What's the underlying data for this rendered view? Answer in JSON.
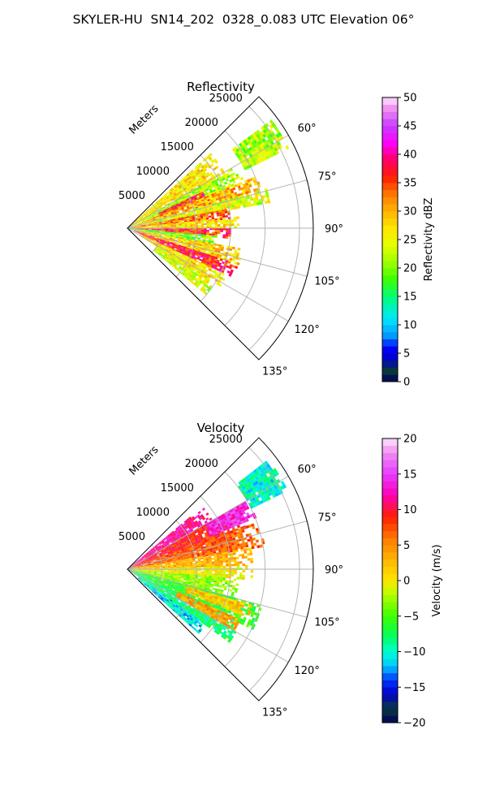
{
  "figure": {
    "title": "SKYLER-HU  SN14_202  0328_0.083 UTC Elevation 06°"
  },
  "palettes": {
    "reflectivity": [
      {
        "v": 0,
        "c": "#00005a"
      },
      {
        "v": 2,
        "c": "#0b3b3b"
      },
      {
        "v": 4,
        "c": "#0000c8"
      },
      {
        "v": 6,
        "c": "#0000ff"
      },
      {
        "v": 8,
        "c": "#0096ff"
      },
      {
        "v": 11,
        "c": "#00e6ff"
      },
      {
        "v": 15,
        "c": "#00ff78"
      },
      {
        "v": 18,
        "c": "#3cff00"
      },
      {
        "v": 21,
        "c": "#9eff00"
      },
      {
        "v": 24,
        "c": "#e6ff00"
      },
      {
        "v": 27,
        "c": "#ffe600"
      },
      {
        "v": 30,
        "c": "#ffb400"
      },
      {
        "v": 33,
        "c": "#ff7800"
      },
      {
        "v": 36,
        "c": "#ff1e00"
      },
      {
        "v": 39,
        "c": "#ff0064"
      },
      {
        "v": 42,
        "c": "#ff00ff"
      },
      {
        "v": 45,
        "c": "#c83cff"
      },
      {
        "v": 48,
        "c": "#f08cf0"
      },
      {
        "v": 50,
        "c": "#ffe6ff"
      }
    ],
    "velocity": [
      {
        "v": -20,
        "c": "#00005a"
      },
      {
        "v": -18,
        "c": "#0b3b3b"
      },
      {
        "v": -16,
        "c": "#0000c8"
      },
      {
        "v": -14,
        "c": "#0032ff"
      },
      {
        "v": -12,
        "c": "#00c8ff"
      },
      {
        "v": -10,
        "c": "#00ffd2"
      },
      {
        "v": -8,
        "c": "#00ff64"
      },
      {
        "v": -5,
        "c": "#3cff00"
      },
      {
        "v": -2,
        "c": "#b4ff00"
      },
      {
        "v": 0,
        "c": "#ffe600"
      },
      {
        "v": 3,
        "c": "#ffb400"
      },
      {
        "v": 6,
        "c": "#ff7800"
      },
      {
        "v": 9,
        "c": "#ff1e00"
      },
      {
        "v": 12,
        "c": "#ff00b4"
      },
      {
        "v": 15,
        "c": "#e63cff"
      },
      {
        "v": 18,
        "c": "#f08cf0"
      },
      {
        "v": 20,
        "c": "#ffe6ff"
      }
    ]
  },
  "chart_data": [
    {
      "type": "heatmap",
      "subtype": "radar-sector (polar)",
      "title": "Reflectivity",
      "radial_label": "Meters",
      "radial_ticks": [
        5000,
        10000,
        15000,
        20000,
        25000
      ],
      "radial_tick_labels": [
        "5000",
        "10000",
        "15000",
        "20000",
        "25000"
      ],
      "angle_ticks_deg": [
        60,
        75,
        90,
        105,
        120,
        135
      ],
      "angle_tick_labels": [
        "60°",
        "75°",
        "90°",
        "105°",
        "120°",
        "135°"
      ],
      "azimuth_range_deg": [
        45,
        135
      ],
      "range_max_m": 27000,
      "grid": true,
      "colorbar": {
        "label": "Reflectivity dBZ",
        "range": [
          0,
          50
        ],
        "ticks": [
          0,
          5,
          10,
          15,
          20,
          25,
          30,
          35,
          40,
          45,
          50
        ],
        "tick_labels": [
          "0",
          "5",
          "10",
          "15",
          "20",
          "25",
          "30",
          "35",
          "40",
          "45",
          "50"
        ],
        "palette": "reflectivity"
      },
      "approx_value_range": [
        15,
        45
      ],
      "bands": [
        {
          "az": [
            48,
            60
          ],
          "r": [
            0,
            16000
          ],
          "value": 27
        },
        {
          "az": [
            60,
            68
          ],
          "r": [
            0,
            18000
          ],
          "value": 22
        },
        {
          "az": [
            64,
            70
          ],
          "r": [
            5000,
            12000
          ],
          "value": 37
        },
        {
          "az": [
            68,
            74
          ],
          "r": [
            0,
            20000
          ],
          "value": 30
        },
        {
          "az": [
            74,
            79
          ],
          "r": [
            0,
            21000
          ],
          "value": 24
        },
        {
          "az": [
            79,
            84
          ],
          "r": [
            0,
            15000
          ],
          "value": 33
        },
        {
          "az": [
            84,
            90
          ],
          "r": [
            0,
            16000
          ],
          "value": 27
        },
        {
          "az": [
            90,
            95
          ],
          "r": [
            0,
            15000
          ],
          "value": 36
        },
        {
          "az": [
            95,
            100
          ],
          "r": [
            0,
            13000
          ],
          "value": 19
        },
        {
          "az": [
            100,
            108
          ],
          "r": [
            0,
            17000
          ],
          "value": 28
        },
        {
          "az": [
            108,
            115
          ],
          "r": [
            1000,
            17000
          ],
          "value": 37
        },
        {
          "az": [
            115,
            122
          ],
          "r": [
            2000,
            16000
          ],
          "value": 27
        },
        {
          "az": [
            122,
            130
          ],
          "r": [
            5000,
            15000
          ],
          "value": 24
        },
        {
          "az": [
            53,
            63
          ],
          "r": [
            19000,
            26000
          ],
          "value": 22
        }
      ]
    },
    {
      "type": "heatmap",
      "subtype": "radar-sector (polar)",
      "title": "Velocity",
      "radial_label": "Meters",
      "radial_ticks": [
        5000,
        10000,
        15000,
        20000,
        25000
      ],
      "radial_tick_labels": [
        "5000",
        "10000",
        "15000",
        "20000",
        "25000"
      ],
      "angle_ticks_deg": [
        60,
        75,
        90,
        105,
        120,
        135
      ],
      "angle_tick_labels": [
        "60°",
        "75°",
        "90°",
        "105°",
        "120°",
        "135°"
      ],
      "azimuth_range_deg": [
        45,
        135
      ],
      "range_max_m": 27000,
      "grid": true,
      "colorbar": {
        "label": "Velocity (m/s)",
        "range": [
          -20,
          20
        ],
        "ticks": [
          -20,
          -15,
          -10,
          -5,
          0,
          5,
          10,
          15,
          20
        ],
        "tick_labels": [
          "−20",
          "−15",
          "−10",
          "−5",
          "0",
          "5",
          "10",
          "15",
          "20"
        ],
        "palette": "velocity"
      },
      "approx_value_range": [
        -12,
        14
      ],
      "bands": [
        {
          "az": [
            50,
            60
          ],
          "r": [
            0,
            14000
          ],
          "value": 12
        },
        {
          "az": [
            60,
            70
          ],
          "r": [
            0,
            18000
          ],
          "value": 9
        },
        {
          "az": [
            70,
            80
          ],
          "r": [
            0,
            20000
          ],
          "value": 7
        },
        {
          "az": [
            80,
            88
          ],
          "r": [
            0,
            18000
          ],
          "value": 3
        },
        {
          "az": [
            88,
            95
          ],
          "r": [
            0,
            18000
          ],
          "value": 0
        },
        {
          "az": [
            95,
            105
          ],
          "r": [
            0,
            16000
          ],
          "value": -3
        },
        {
          "az": [
            105,
            115
          ],
          "r": [
            0,
            20000
          ],
          "value": -6
        },
        {
          "az": [
            115,
            125
          ],
          "r": [
            0,
            18000
          ],
          "value": -8
        },
        {
          "az": [
            125,
            132
          ],
          "r": [
            2000,
            14000
          ],
          "value": -11
        },
        {
          "az": [
            106,
            112
          ],
          "r": [
            9000,
            19000
          ],
          "value": 2
        },
        {
          "az": [
            114,
            120
          ],
          "r": [
            8000,
            18000
          ],
          "value": 4
        },
        {
          "az": [
            60,
            68
          ],
          "r": [
            13000,
            20000
          ],
          "value": 14
        },
        {
          "az": [
            52,
            64
          ],
          "r": [
            20000,
            26000
          ],
          "value": -10
        }
      ]
    }
  ]
}
